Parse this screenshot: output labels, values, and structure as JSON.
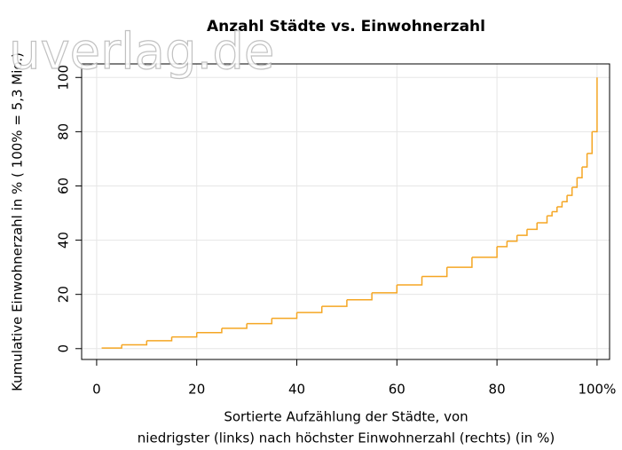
{
  "chart_data": {
    "type": "line",
    "drawstyle": "steps",
    "title": "Anzahl Städte vs. Einwohnerzahl",
    "xlabel": [
      "Sortierte Aufzählung der Städte, von",
      "niedrigster (links) nach höchster Einwohnerzahl (rechts) (in %)"
    ],
    "ylabel": "Kumulative Einwohnerzahl in % ( 100% = 5,3 Mio.)",
    "watermark": "uverlag.de",
    "color": "#f5a623",
    "grid": true,
    "xlim": [
      -3,
      102.5
    ],
    "ylim": [
      -4,
      105
    ],
    "xticks": [
      0,
      20,
      40,
      60,
      80,
      {
        "value": 100,
        "label": "100%"
      }
    ],
    "yticks": [
      0,
      20,
      40,
      60,
      80,
      100
    ],
    "x": [
      1,
      5,
      10,
      15,
      20,
      25,
      30,
      35,
      40,
      45,
      50,
      55,
      60,
      65,
      70,
      75,
      80,
      82,
      84,
      86,
      88,
      90,
      91,
      92,
      93,
      94,
      95,
      96,
      97,
      98,
      99,
      100
    ],
    "values": [
      0.2,
      1.4,
      2.9,
      4.3,
      5.9,
      7.5,
      9.2,
      11.2,
      13.3,
      15.6,
      18,
      20.6,
      23.5,
      26.6,
      30,
      33.7,
      37.6,
      39.6,
      41.8,
      44,
      46.4,
      49,
      50.5,
      52.3,
      54.2,
      56.5,
      59.5,
      63,
      67,
      72,
      80,
      100
    ]
  }
}
